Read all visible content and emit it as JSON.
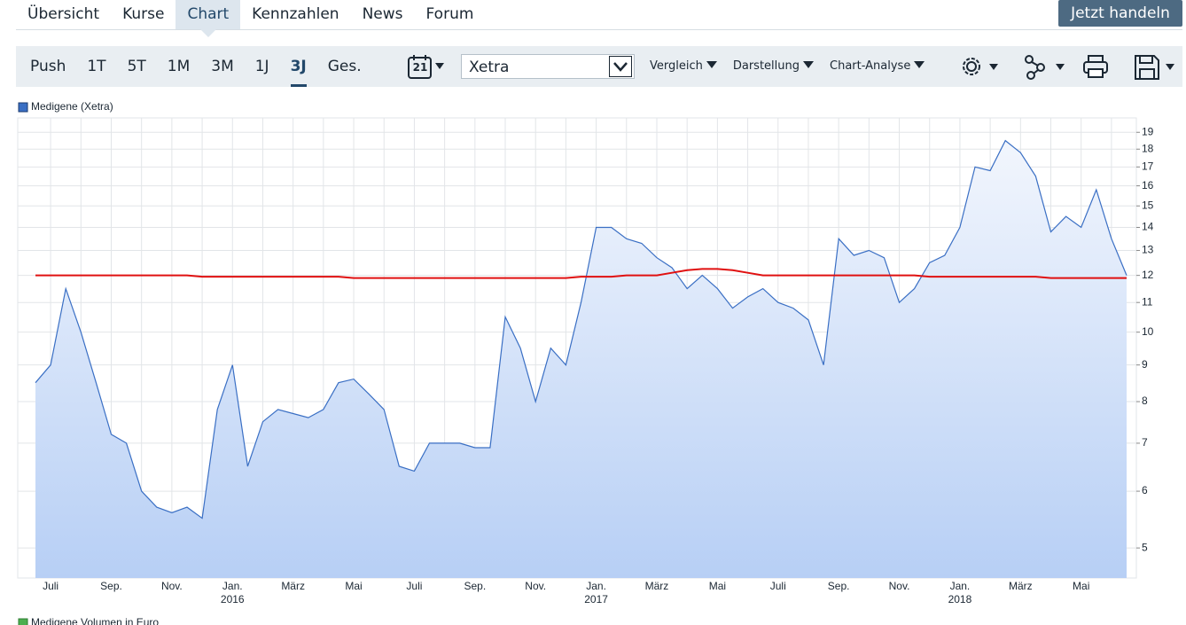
{
  "nav": {
    "tabs": [
      "Übersicht",
      "Kurse",
      "Chart",
      "Kennzahlen",
      "News",
      "Forum"
    ],
    "active": 2,
    "cta": "Jetzt handeln"
  },
  "toolbar": {
    "ranges": [
      "Push",
      "1T",
      "5T",
      "1M",
      "3M",
      "1J",
      "3J",
      "Ges."
    ],
    "active": 6,
    "calendar_day": "21",
    "exchange": "Xetra",
    "menus": [
      "Vergleich",
      "Darstellung",
      "Chart-Analyse"
    ]
  },
  "chart_data": {
    "type": "line",
    "log_scale": true,
    "grid": true,
    "area_fill": true,
    "categories": [
      null,
      "Juli",
      null,
      null,
      null,
      "Sep.",
      null,
      null,
      null,
      "Nov.",
      null,
      null,
      null,
      "Jan.",
      null,
      null,
      null,
      "März",
      null,
      null,
      null,
      "Mai",
      null,
      null,
      null,
      "Juli",
      null,
      null,
      null,
      "Sep.",
      null,
      null,
      null,
      "Nov.",
      null,
      null,
      null,
      "Jan.",
      null,
      null,
      null,
      "März",
      null,
      null,
      null,
      "Mai",
      null,
      null,
      null,
      "Juli",
      null,
      null,
      null,
      "Sep.",
      null,
      null,
      null,
      "Nov.",
      null,
      null,
      null,
      "Jan.",
      null,
      null,
      null,
      "März",
      null,
      null,
      null,
      "Mai",
      null,
      null,
      null
    ],
    "years": [
      null,
      null,
      null,
      null,
      null,
      null,
      null,
      null,
      null,
      null,
      null,
      null,
      null,
      "2016",
      null,
      null,
      null,
      null,
      null,
      null,
      null,
      null,
      null,
      null,
      null,
      null,
      null,
      null,
      null,
      null,
      null,
      null,
      null,
      null,
      null,
      null,
      null,
      "2017",
      null,
      null,
      null,
      null,
      null,
      null,
      null,
      null,
      null,
      null,
      null,
      null,
      null,
      null,
      null,
      null,
      null,
      null,
      null,
      null,
      null,
      null,
      null,
      "2018",
      null,
      null,
      null,
      null,
      null,
      null,
      null,
      null,
      null,
      null,
      null
    ],
    "series": [
      {
        "name": "Medigene (Xetra)",
        "color": "#3a6fc4",
        "values": [
          8.5,
          9.0,
          11.5,
          10.0,
          8.5,
          7.2,
          7.0,
          6.0,
          5.7,
          5.6,
          5.7,
          5.5,
          7.8,
          9.0,
          6.5,
          7.5,
          7.8,
          7.7,
          7.6,
          7.8,
          8.5,
          8.6,
          8.2,
          7.8,
          6.5,
          6.4,
          7.0,
          7.0,
          7.0,
          6.9,
          6.9,
          10.5,
          9.5,
          8.0,
          9.5,
          9.0,
          11.0,
          14.0,
          14.0,
          13.5,
          13.3,
          12.7,
          12.3,
          11.5,
          12.0,
          11.5,
          10.8,
          11.2,
          11.5,
          11.0,
          10.8,
          10.4,
          9.0,
          13.5,
          12.8,
          13.0,
          12.7,
          11.0,
          11.5,
          12.5,
          12.8,
          14.0,
          17.0,
          16.8,
          18.5,
          17.8,
          16.5,
          13.8,
          14.5,
          14.0,
          15.8,
          13.5,
          12.0
        ]
      },
      {
        "color": "#e01010",
        "values": [
          12,
          12,
          12,
          12,
          12,
          12,
          12,
          12,
          12,
          12,
          12,
          11.95,
          11.95,
          11.95,
          11.95,
          11.95,
          11.95,
          11.95,
          11.95,
          11.95,
          11.95,
          11.9,
          11.9,
          11.9,
          11.9,
          11.9,
          11.9,
          11.9,
          11.9,
          11.9,
          11.9,
          11.9,
          11.9,
          11.9,
          11.9,
          11.9,
          11.95,
          11.95,
          11.95,
          12,
          12,
          12,
          12.1,
          12.2,
          12.25,
          12.25,
          12.2,
          12.1,
          12,
          12,
          12,
          12,
          12,
          12,
          12,
          12,
          12,
          12,
          12,
          11.95,
          11.95,
          11.95,
          11.95,
          11.95,
          11.95,
          11.95,
          11.95,
          11.9,
          11.9,
          11.9,
          11.9,
          11.9,
          11.9
        ]
      }
    ],
    "ylim": [
      4.54,
      19.9
    ],
    "yticks": [
      5,
      6,
      7,
      8,
      9,
      10,
      11,
      12,
      13,
      14,
      15,
      16,
      17,
      18,
      19
    ]
  },
  "volume_legend": {
    "name": "Medigene Volumen in Euro",
    "color": "#4caf50"
  }
}
